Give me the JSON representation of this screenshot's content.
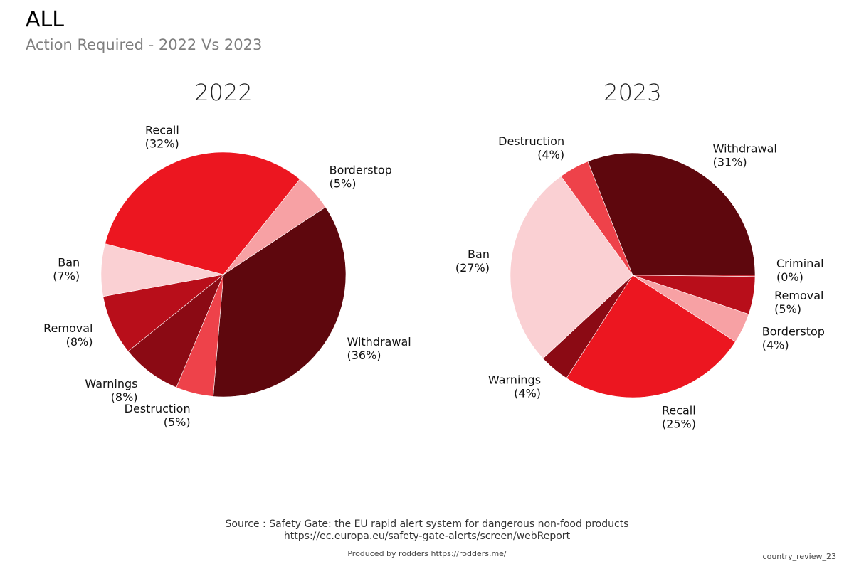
{
  "header": {
    "title": "ALL",
    "subtitle": "Action Required - 2022 Vs 2023"
  },
  "footer": {
    "source_line1": "Source : Safety Gate: the EU rapid alert system for dangerous non-food products",
    "source_line2": "https://ec.europa.eu/safety-gate-alerts/screen/webReport",
    "produced_by": "Produced by rodders https://rodders.me/",
    "tag": "country_review_23"
  },
  "colors": {
    "Withdrawal": "#5e070d",
    "Destruction": "#ee424a",
    "Warnings": "#8b0a14",
    "Removal": "#b80e1a",
    "Ban": "#fad0d3",
    "Recall": "#ec1620",
    "Borderstop": "#f7a1a4",
    "Criminal": "#c4303a"
  },
  "chart_data": [
    {
      "type": "pie",
      "title": "2022",
      "slices": [
        {
          "label": "Withdrawal",
          "value": 36,
          "pct_label": "(36%)"
        },
        {
          "label": "Destruction",
          "value": 5,
          "pct_label": "(5%)"
        },
        {
          "label": "Warnings",
          "value": 8,
          "pct_label": "(8%)"
        },
        {
          "label": "Removal",
          "value": 8,
          "pct_label": "(8%)"
        },
        {
          "label": "Ban",
          "value": 7,
          "pct_label": "(7%)"
        },
        {
          "label": "Recall",
          "value": 32,
          "pct_label": "(32%)"
        },
        {
          "label": "Borderstop",
          "value": 5,
          "pct_label": "(5%)"
        }
      ]
    },
    {
      "type": "pie",
      "title": "2023",
      "slices": [
        {
          "label": "Withdrawal",
          "value": 31,
          "pct_label": "(31%)"
        },
        {
          "label": "Criminal",
          "value": 0.2,
          "pct_label": "(0%)"
        },
        {
          "label": "Removal",
          "value": 5,
          "pct_label": "(5%)"
        },
        {
          "label": "Borderstop",
          "value": 4,
          "pct_label": "(4%)"
        },
        {
          "label": "Recall",
          "value": 25,
          "pct_label": "(25%)"
        },
        {
          "label": "Warnings",
          "value": 4,
          "pct_label": "(4%)"
        },
        {
          "label": "Ban",
          "value": 27,
          "pct_label": "(27%)"
        },
        {
          "label": "Destruction",
          "value": 4,
          "pct_label": "(4%)"
        }
      ]
    }
  ]
}
